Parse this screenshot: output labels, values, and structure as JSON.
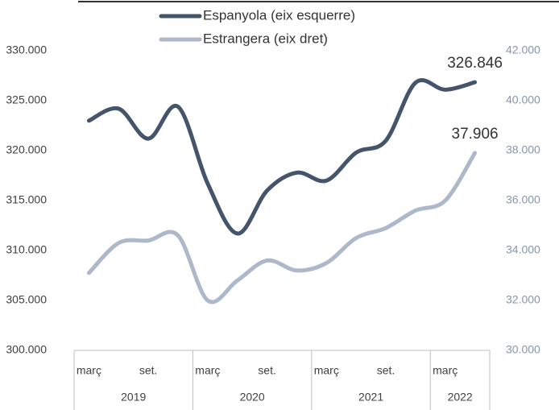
{
  "chart_data": {
    "type": "line",
    "categories": [
      "març",
      null,
      "set.",
      null,
      "març",
      null,
      "set.",
      null,
      "març",
      null,
      "set.",
      null,
      "març",
      null
    ],
    "x_groups": [
      {
        "label": "2019",
        "count": 4
      },
      {
        "label": "2020",
        "count": 4
      },
      {
        "label": "2021",
        "count": 4
      },
      {
        "label": "2022",
        "count": 2
      }
    ],
    "series": [
      {
        "name": "Espanyola (eix esquerre)",
        "color": "#44546a",
        "axis": "y",
        "values": [
          323000,
          324200,
          321200,
          324400,
          316700,
          311700,
          316000,
          317800,
          317000,
          319800,
          321000,
          326800,
          326100,
          326846
        ],
        "value_labels": [
          null,
          null,
          null,
          null,
          null,
          null,
          null,
          null,
          null,
          null,
          null,
          null,
          null,
          "326.846"
        ]
      },
      {
        "name": "Estrangera (eix dret)",
        "color": "#adb9ca",
        "axis": "y2",
        "values": [
          33100,
          34300,
          34400,
          34600,
          32000,
          32800,
          33600,
          33200,
          33500,
          34500,
          34900,
          35600,
          36000,
          37906
        ],
        "value_labels": [
          null,
          null,
          null,
          null,
          null,
          null,
          null,
          null,
          null,
          null,
          null,
          null,
          null,
          "37.906"
        ]
      }
    ],
    "ylim": [
      300000,
      330000
    ],
    "yticks": [
      {
        "value": 300000,
        "label": "300.000"
      },
      {
        "value": 305000,
        "label": "305.000"
      },
      {
        "value": 310000,
        "label": "310.000"
      },
      {
        "value": 315000,
        "label": "315.000"
      },
      {
        "value": 320000,
        "label": "320.000"
      },
      {
        "value": 325000,
        "label": "325.000"
      },
      {
        "value": 330000,
        "label": "330.000"
      }
    ],
    "y2lim": [
      30000,
      42000
    ],
    "y2ticks": [
      {
        "value": 30000,
        "label": "30.000"
      },
      {
        "value": 32000,
        "label": "32.000"
      },
      {
        "value": 34000,
        "label": "34.000"
      },
      {
        "value": 36000,
        "label": "36.000"
      },
      {
        "value": 38000,
        "label": "38.000"
      },
      {
        "value": 40000,
        "label": "40.000"
      },
      {
        "value": 42000,
        "label": "42.000"
      }
    ],
    "grid": false,
    "legend": "top"
  }
}
